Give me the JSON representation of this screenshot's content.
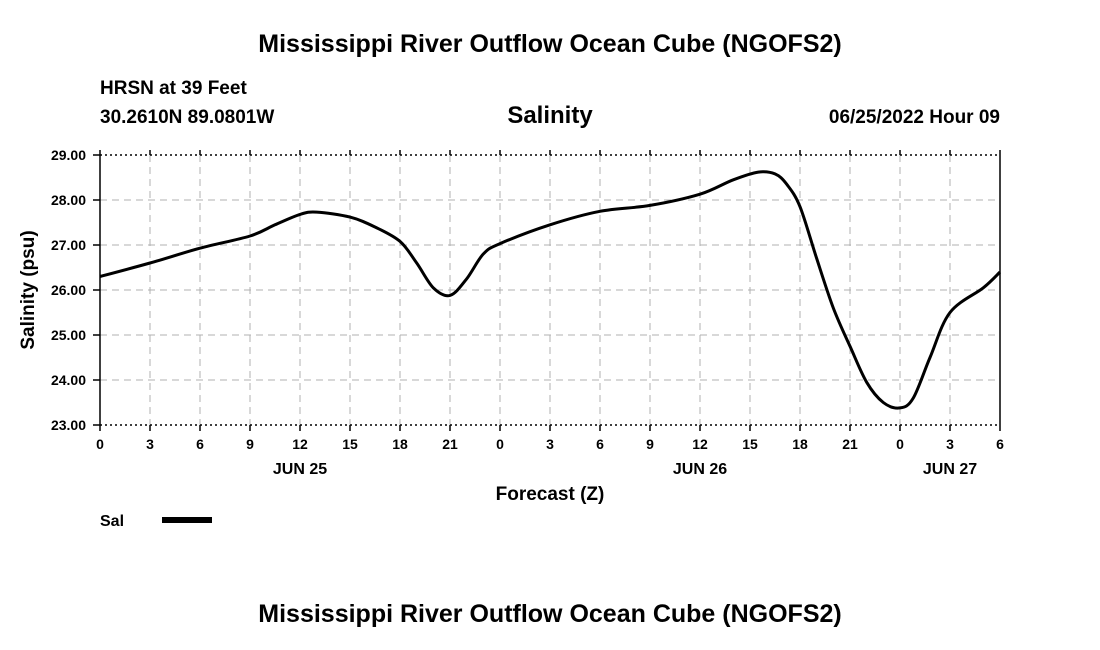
{
  "page": {
    "title": "Mississippi River Outflow Ocean Cube (NGOFS2)",
    "footer_title": "Mississippi River Outflow Ocean Cube (NGOFS2)",
    "station_line": "HRSN at 39 Feet",
    "coords_line": "30.2610N  89.0801W",
    "datetime": "06/25/2022 Hour 09"
  },
  "chart_data": {
    "type": "line",
    "title": "Salinity",
    "xlabel": "Forecast (Z)",
    "ylabel": "Salinity (psu)",
    "ylim": [
      23.0,
      29.0
    ],
    "yticks": [
      "23.00",
      "24.00",
      "25.00",
      "26.00",
      "27.00",
      "28.00",
      "29.00"
    ],
    "xticks": [
      "0",
      "3",
      "6",
      "9",
      "12",
      "15",
      "18",
      "21",
      "0",
      "3",
      "6",
      "9",
      "12",
      "15",
      "18",
      "21",
      "0",
      "3",
      "6"
    ],
    "date_labels": [
      {
        "label": "JUN 25",
        "at_tick": 4
      },
      {
        "label": "JUN 26",
        "at_tick": 12
      },
      {
        "label": "JUN 27",
        "at_tick": 17
      }
    ],
    "grid": true,
    "legend_placement": "bottom-left",
    "series": [
      {
        "name": "Sal",
        "color": "#000000",
        "points": [
          [
            0,
            26.3
          ],
          [
            3,
            26.6
          ],
          [
            6,
            26.93
          ],
          [
            9,
            27.2
          ],
          [
            10.5,
            27.45
          ],
          [
            12,
            27.68
          ],
          [
            13,
            27.73
          ],
          [
            15,
            27.62
          ],
          [
            16.5,
            27.4
          ],
          [
            18,
            27.08
          ],
          [
            19,
            26.6
          ],
          [
            20,
            26.05
          ],
          [
            21,
            25.88
          ],
          [
            22,
            26.25
          ],
          [
            23,
            26.8
          ],
          [
            24,
            27.03
          ],
          [
            27,
            27.45
          ],
          [
            30,
            27.75
          ],
          [
            33,
            27.88
          ],
          [
            36,
            28.13
          ],
          [
            38,
            28.45
          ],
          [
            39.5,
            28.62
          ],
          [
            40.5,
            28.58
          ],
          [
            41.2,
            28.35
          ],
          [
            42,
            27.85
          ],
          [
            43,
            26.7
          ],
          [
            44,
            25.6
          ],
          [
            45,
            24.75
          ],
          [
            46,
            23.95
          ],
          [
            47,
            23.5
          ],
          [
            48,
            23.38
          ],
          [
            48.8,
            23.6
          ],
          [
            49.8,
            24.5
          ],
          [
            51,
            25.5
          ],
          [
            53,
            26.05
          ],
          [
            54,
            26.4
          ]
        ]
      }
    ]
  }
}
